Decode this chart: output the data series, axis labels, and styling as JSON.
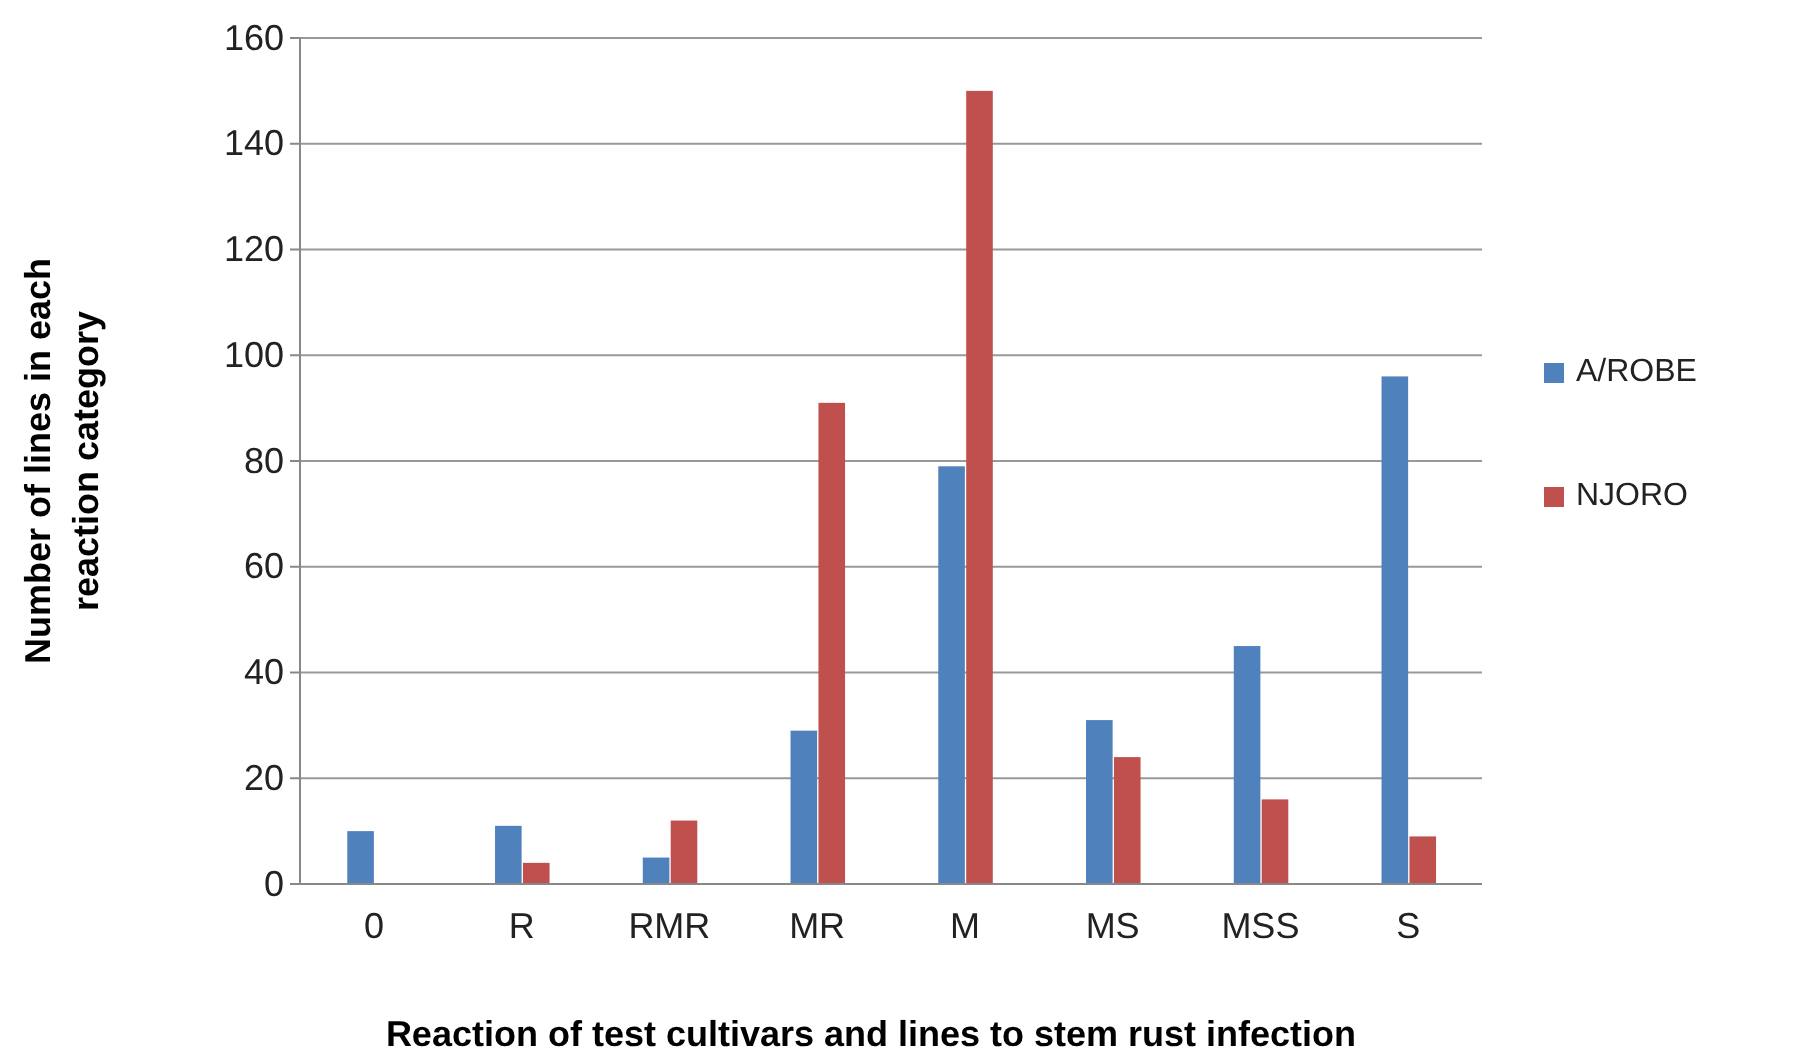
{
  "chart_data": {
    "type": "bar",
    "xlabel": "Reaction of test cultivars and lines to stem rust infection",
    "ylabel": "Number of lines in each reaction category",
    "categories": [
      "0",
      "R",
      "RMR",
      "MR",
      "M",
      "MS",
      "MSS",
      "S"
    ],
    "series": [
      {
        "name": "A/ROBE",
        "color": "#4f81bd",
        "values": [
          10,
          11,
          5,
          29,
          79,
          31,
          45,
          96
        ]
      },
      {
        "name": "NJORO",
        "color": "#c0504d",
        "values": [
          0,
          4,
          12,
          91,
          150,
          24,
          16,
          9
        ]
      }
    ],
    "ylim": [
      0,
      160
    ],
    "yticks": [
      0,
      20,
      40,
      60,
      80,
      100,
      120,
      140,
      160
    ],
    "grid": "y",
    "legend": "right"
  }
}
